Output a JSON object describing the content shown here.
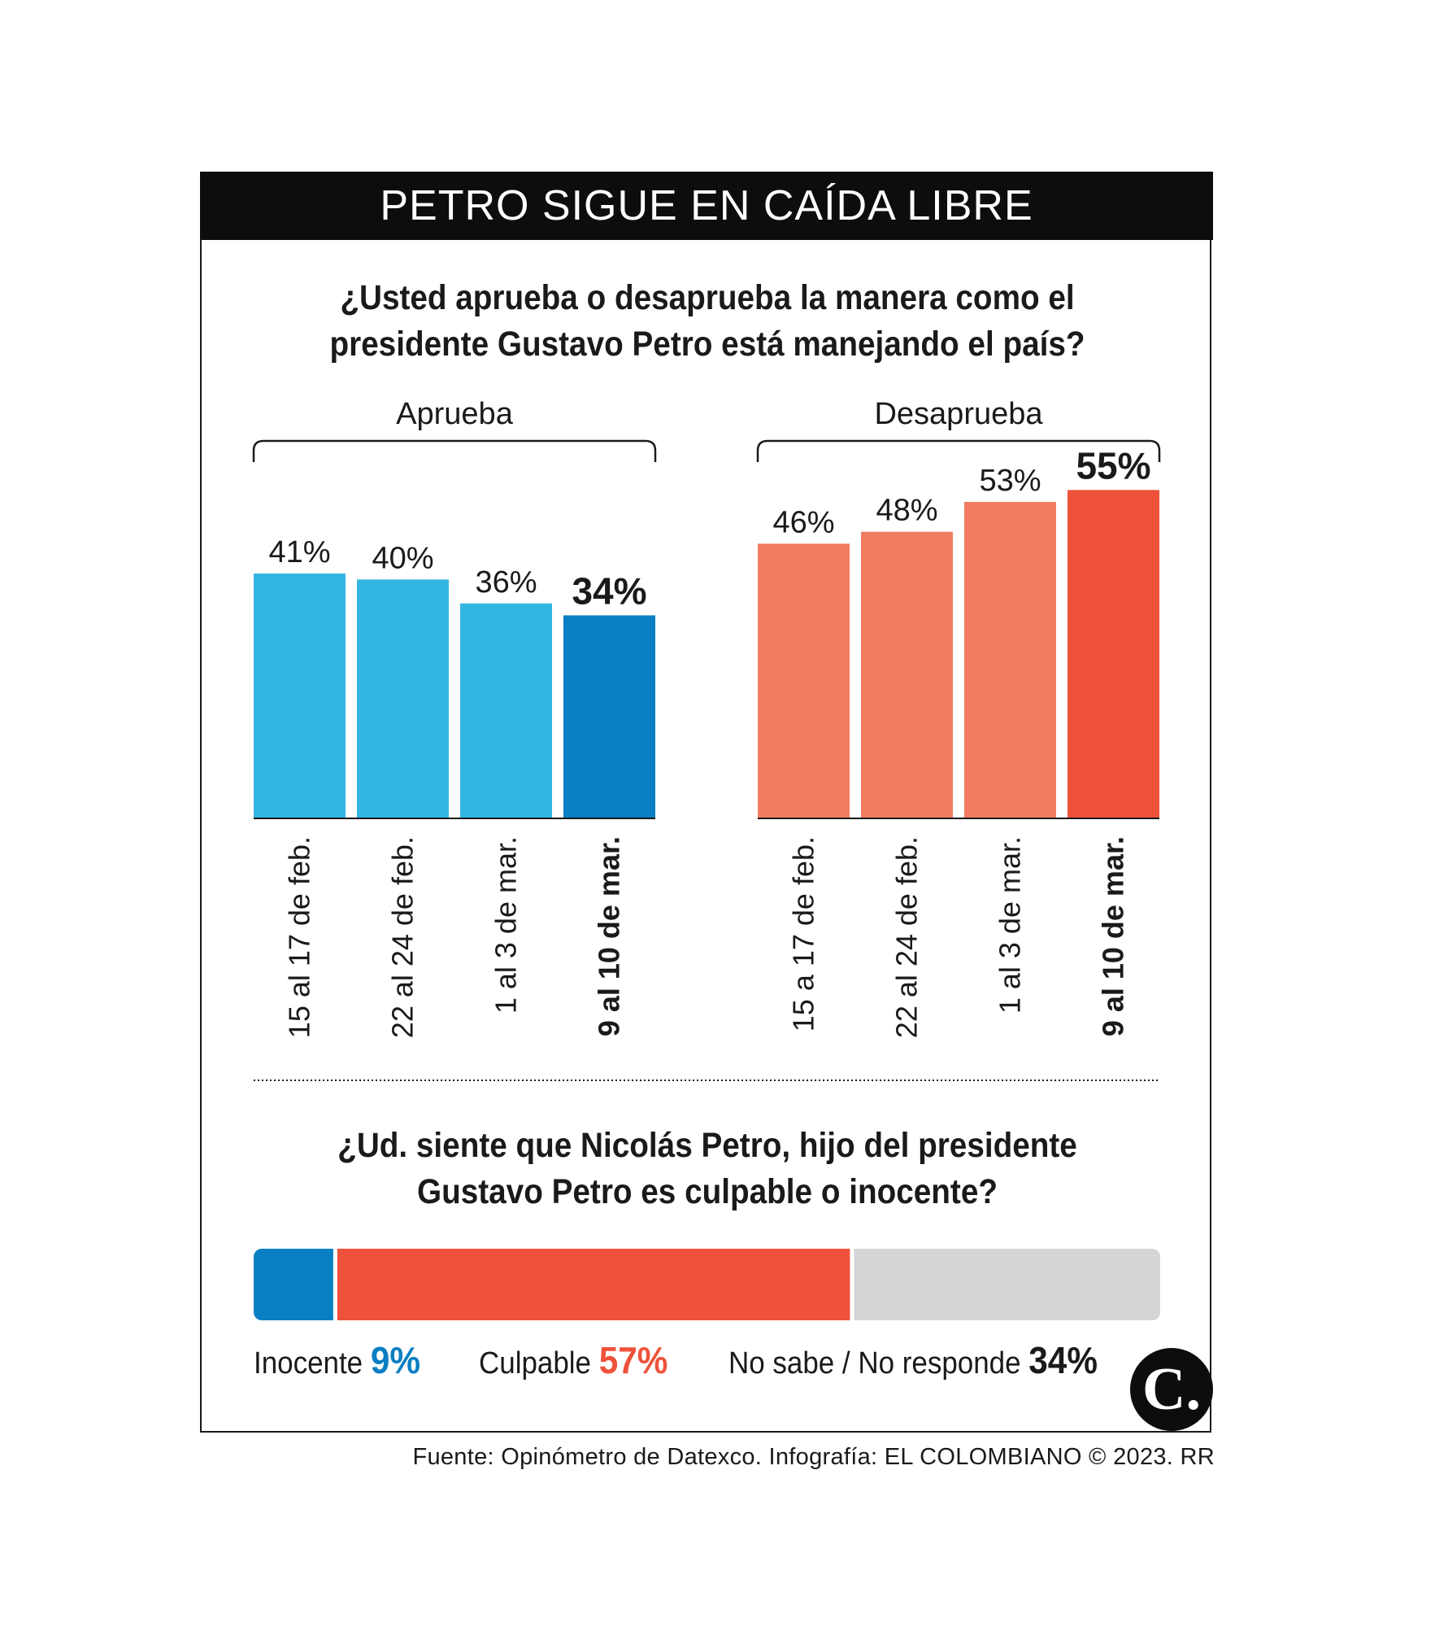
{
  "header": {
    "title": "PETRO SIGUE EN CAÍDA LIBRE"
  },
  "question1": {
    "line1": "¿Usted aprueba o desaprueba la manera como el",
    "line2": "presidente Gustavo Petro está manejando el país?"
  },
  "question2": {
    "line1": "¿Ud. siente que Nicolás Petro, hijo del presidente",
    "line2": "Gustavo Petro es culpable o inocente?"
  },
  "chart_data": [
    {
      "type": "bar",
      "title": "Aprueba",
      "categories": [
        "15 al 17 de feb.",
        "22 al 24 de feb.",
        "1 al 3 de mar.",
        "9 al 10 de mar."
      ],
      "values": [
        41,
        40,
        36,
        34
      ],
      "value_labels": [
        "41%",
        "40%",
        "36%",
        "34%"
      ],
      "highlight_index": 3,
      "colors": [
        "#33b5e2",
        "#33b5e2",
        "#33b5e2",
        "#0a7fc1"
      ],
      "ylim": [
        0,
        100
      ]
    },
    {
      "type": "bar",
      "title": "Desaprueba",
      "categories": [
        "15 a 17 de feb.",
        "22 al 24 de feb.",
        "1 al 3 de mar.",
        "9 al 10 de mar."
      ],
      "values": [
        46,
        48,
        53,
        55
      ],
      "value_labels": [
        "46%",
        "48%",
        "53%",
        "55%"
      ],
      "highlight_index": 3,
      "colors": [
        "#f27c61",
        "#f27c61",
        "#f27c61",
        "#ee523b"
      ],
      "ylim": [
        0,
        100
      ]
    },
    {
      "type": "stacked-bar",
      "series": [
        {
          "name": "Inocente",
          "value": 9,
          "label": "9%",
          "color": "#0a7fc1"
        },
        {
          "name": "Culpable",
          "value": 57,
          "label": "57%",
          "color": "#ee523b"
        },
        {
          "name": "No sabe / No responde",
          "value": 34,
          "label": "34%",
          "color": "#d3d5d6"
        }
      ]
    }
  ],
  "footer": {
    "source": "Fuente: Opinómetro de Datexco. Infografía: EL COLOMBIANO © 2023. RR"
  },
  "logo": {
    "text": "C."
  }
}
